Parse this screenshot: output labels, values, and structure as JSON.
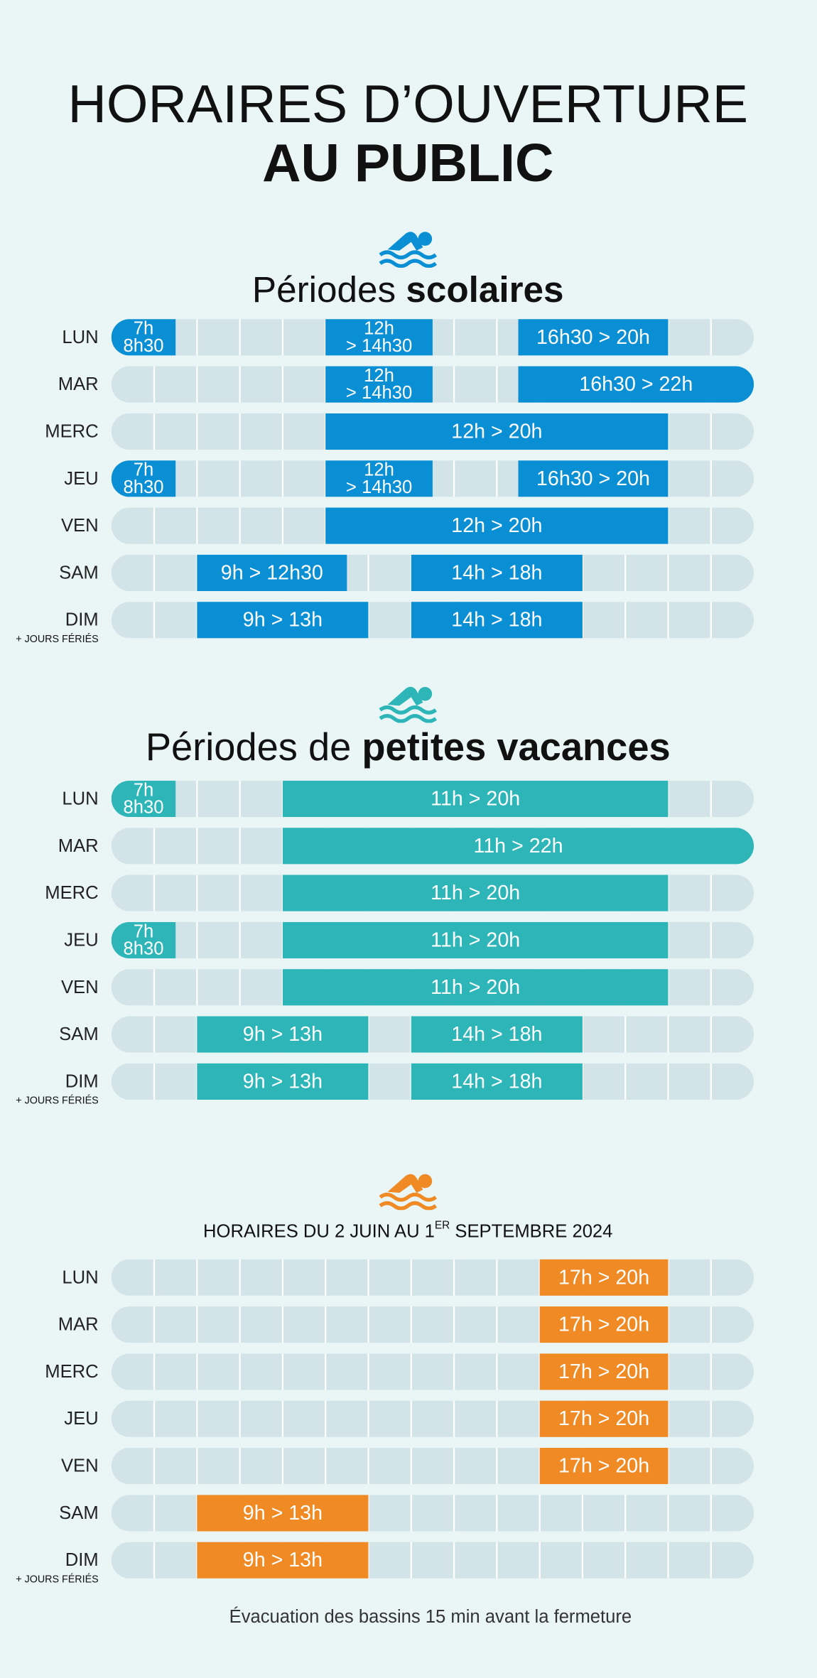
{
  "header": {
    "title_line1": "HORAIRES D’OUVERTURE",
    "title_line2": "AU PUBLIC"
  },
  "sections": [
    {
      "title_regular": "Périodes ",
      "title_bold": "scolaires",
      "color": "#0a8fd4",
      "rows": [
        {
          "day": "LUN",
          "slots": [
            [
              "7h",
              "8h30"
            ],
            [
              "12h",
              "> 14h30"
            ],
            [
              "16h30 > 20h"
            ]
          ]
        },
        {
          "day": "MAR",
          "slots": [
            [
              "12h",
              "> 14h30"
            ],
            [
              "16h30 > 22h"
            ]
          ]
        },
        {
          "day": "MERC",
          "slots": [
            [
              "12h > 20h"
            ]
          ]
        },
        {
          "day": "JEU",
          "slots": [
            [
              "7h",
              "8h30"
            ],
            [
              "12h",
              "> 14h30"
            ],
            [
              "16h30 > 20h"
            ]
          ]
        },
        {
          "day": "VEN",
          "slots": [
            [
              "12h > 20h"
            ]
          ]
        },
        {
          "day": "SAM",
          "slots": [
            [
              "9h > 12h30"
            ],
            [
              "14h > 18h"
            ]
          ]
        },
        {
          "day": "DIM",
          "note": "+ JOURS FÉRIÉS",
          "slots": [
            [
              "9h > 13h"
            ],
            [
              "14h > 18h"
            ]
          ]
        }
      ]
    },
    {
      "title_regular": "Périodes de ",
      "title_bold": "petites vacances",
      "color": "#2db5b8",
      "rows": [
        {
          "day": "LUN",
          "slots": [
            [
              "7h",
              "8h30"
            ],
            [
              "11h > 20h"
            ]
          ]
        },
        {
          "day": "MAR",
          "slots": [
            [
              "11h > 22h"
            ]
          ]
        },
        {
          "day": "MERC",
          "slots": [
            [
              "11h > 20h"
            ]
          ]
        },
        {
          "day": "JEU",
          "slots": [
            [
              "7h",
              "8h30"
            ],
            [
              "11h > 20h"
            ]
          ]
        },
        {
          "day": "VEN",
          "slots": [
            [
              "11h > 20h"
            ]
          ]
        },
        {
          "day": "SAM",
          "slots": [
            [
              "9h > 13h"
            ],
            [
              "14h > 18h"
            ]
          ]
        },
        {
          "day": "DIM",
          "note": "+ JOURS FÉRIÉS",
          "slots": [
            [
              "9h > 13h"
            ],
            [
              "14h > 18h"
            ]
          ]
        }
      ]
    },
    {
      "title_regular": "HORAIRES DU 2 JUIN AU 1",
      "title_sup": "ER",
      "title_end": " SEPTEMBRE 2024",
      "color": "#f08a24",
      "rows": [
        {
          "day": "LUN",
          "slots": [
            [
              "17h > 20h"
            ]
          ]
        },
        {
          "day": "MAR",
          "slots": [
            [
              "17h > 20h"
            ]
          ]
        },
        {
          "day": "MERC",
          "slots": [
            [
              "17h > 20h"
            ]
          ]
        },
        {
          "day": "JEU",
          "slots": [
            [
              "17h > 20h"
            ]
          ]
        },
        {
          "day": "VEN",
          "slots": [
            [
              "17h > 20h"
            ]
          ]
        },
        {
          "day": "SAM",
          "slots": [
            [
              "9h > 13h"
            ]
          ]
        },
        {
          "day": "DIM",
          "note": "+ JOURS FÉRIÉS",
          "slots": [
            [
              "9h > 13h"
            ]
          ]
        }
      ]
    }
  ],
  "footer": "Évacuation des bassins 15 min avant la fermeture"
}
